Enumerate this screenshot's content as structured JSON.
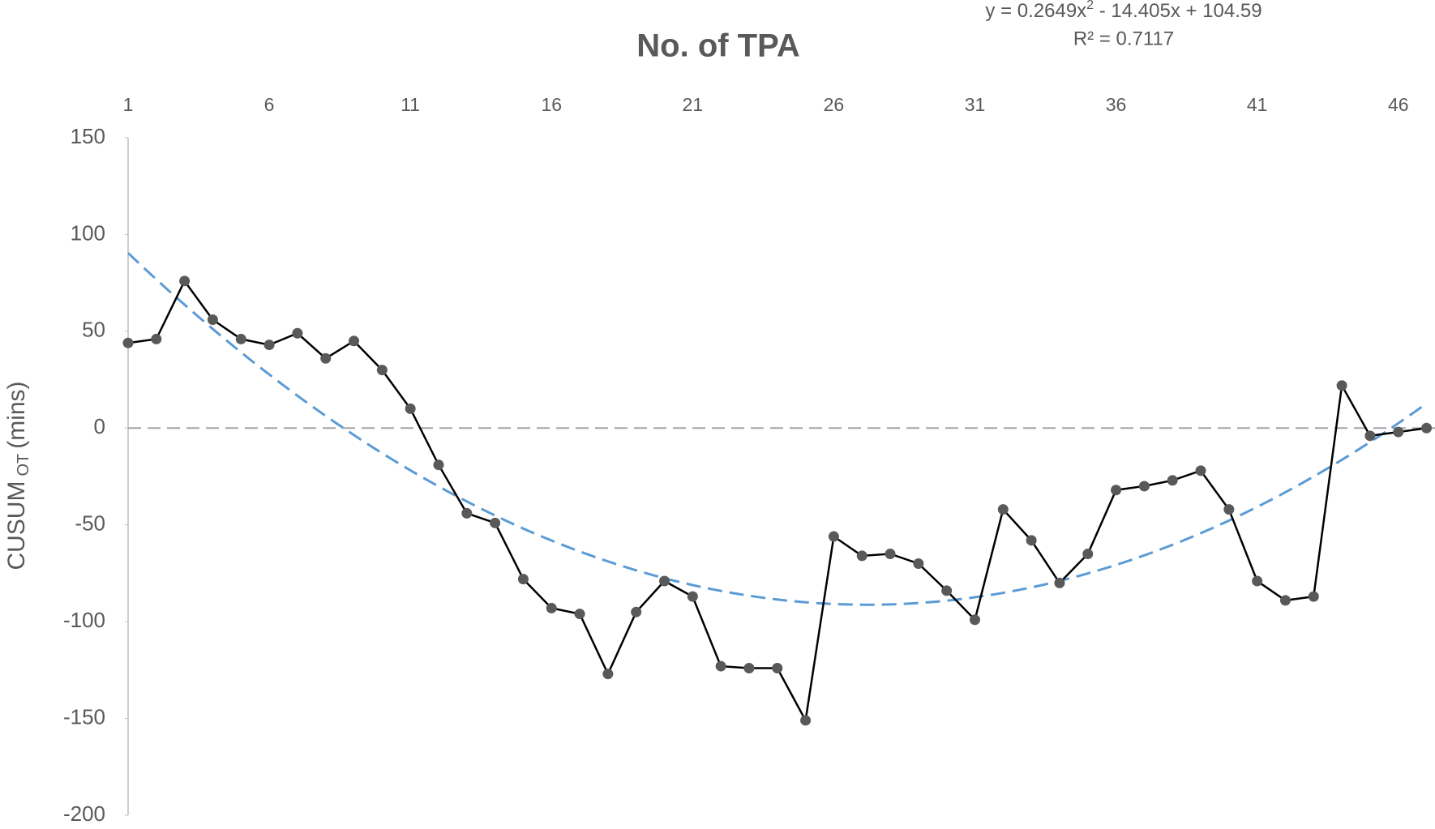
{
  "chart_data": {
    "type": "line",
    "title": "No. of TPA",
    "y_label": {
      "main": "CUSUM",
      "subscript": "OT",
      "unit": "(mins)"
    },
    "annotation": {
      "equation_start": "y = 0.2649x",
      "equation_superscript": "2",
      "equation_end": " - 14.405x + 104.59",
      "r_squared": "R² = 0.7117"
    },
    "x": [
      1,
      2,
      3,
      4,
      5,
      6,
      7,
      8,
      9,
      10,
      11,
      12,
      13,
      14,
      15,
      16,
      17,
      18,
      19,
      20,
      21,
      22,
      23,
      24,
      25,
      26,
      27,
      28,
      29,
      30,
      31,
      32,
      33,
      34,
      35,
      36,
      37,
      38,
      39,
      40,
      41,
      42,
      43,
      44,
      45,
      46,
      47
    ],
    "series": [
      {
        "color": "#000000",
        "marker_color": "#595959",
        "values": [
          44,
          46,
          76,
          56,
          46,
          43,
          49,
          36,
          45,
          30,
          10,
          -19,
          -44,
          -49,
          -78,
          -93,
          -96,
          -127,
          -95,
          -79,
          -87,
          -123,
          -124,
          -124,
          -151,
          -56,
          -66,
          -65,
          -70,
          -84,
          -99,
          -42,
          -58,
          -80,
          -65,
          -32,
          -30,
          -27,
          -22,
          -42,
          -79,
          -89,
          -87,
          22,
          -4,
          -2,
          0
        ]
      }
    ],
    "trendline": {
      "type": "polynomial",
      "coefficients": [
        0.2649,
        -14.405,
        104.59
      ],
      "color": "#5b9bd5"
    },
    "xlim": [
      1,
      47.3
    ],
    "xticks": [
      1,
      6,
      11,
      16,
      21,
      26,
      31,
      36,
      41,
      46
    ],
    "ylim": [
      -200,
      150
    ],
    "yticks": [
      -200,
      -150,
      -100,
      -50,
      0,
      50,
      100,
      150
    ],
    "grid": false
  }
}
